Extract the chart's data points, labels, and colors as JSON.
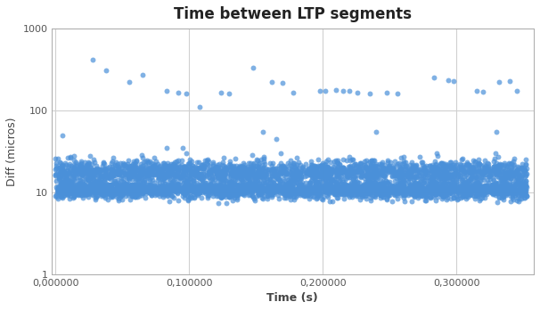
{
  "title": "Time between LTP segments",
  "xlabel": "Time (s)",
  "ylabel": "Diff (micros)",
  "dot_color": "#4a90d9",
  "background_color": "#ffffff",
  "grid_color": "#d0d0d0",
  "xlim": [
    -0.003,
    0.358
  ],
  "ylim": [
    1,
    1000
  ],
  "xticks": [
    0.0,
    0.1,
    0.2,
    0.3
  ],
  "xtick_labels": [
    "0,000000",
    "0,100000",
    "0,200000",
    "0,300000"
  ],
  "yticks": [
    1,
    10,
    100,
    1000
  ],
  "ytick_labels": [
    "1",
    "10",
    "100",
    "1000"
  ],
  "seed": 42,
  "high_outliers_x": [
    0.028,
    0.038,
    0.055,
    0.065,
    0.083,
    0.092,
    0.098,
    0.124,
    0.13,
    0.148,
    0.162,
    0.17,
    0.178,
    0.198,
    0.202,
    0.21,
    0.215,
    0.22,
    0.226,
    0.235,
    0.248,
    0.256,
    0.283,
    0.294,
    0.298,
    0.315,
    0.32,
    0.332,
    0.34,
    0.345
  ],
  "high_outliers_y": [
    420,
    310,
    225,
    275,
    175,
    165,
    160,
    165,
    160,
    330,
    225,
    220,
    165,
    175,
    175,
    180,
    175,
    175,
    165,
    160,
    165,
    160,
    255,
    235,
    230,
    175,
    170,
    225,
    230,
    175
  ],
  "medium_outliers_x": [
    0.005,
    0.083,
    0.095,
    0.098,
    0.108,
    0.155,
    0.165,
    0.24,
    0.285,
    0.33
  ],
  "medium_outliers_y": [
    50,
    35,
    35,
    30,
    110,
    55,
    45,
    55,
    30,
    55
  ]
}
